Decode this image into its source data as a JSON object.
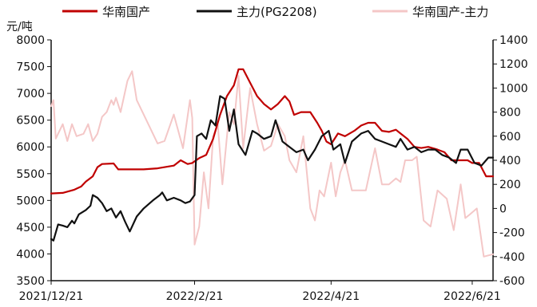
{
  "chart_data": {
    "type": "line",
    "y_unit_label": "元/吨",
    "x_tick_labels": [
      "2021/12/21",
      "2022/2/21",
      "2022/4/21",
      "2022/6/21"
    ],
    "x_range": [
      "2021-12-21",
      "2022-06-30"
    ],
    "y_left": {
      "min": 3500,
      "max": 8000,
      "ticks": [
        3500,
        4000,
        4500,
        5000,
        5500,
        6000,
        6500,
        7000,
        7500,
        8000
      ]
    },
    "y_right": {
      "min": -600,
      "max": 1400,
      "ticks": [
        -600,
        -400,
        -200,
        0,
        200,
        400,
        600,
        800,
        1000,
        1200,
        1400
      ]
    },
    "grid": false,
    "legend_position": "top",
    "series": [
      {
        "name": "华南国产",
        "axis": "left",
        "color": "#c00000",
        "points": [
          [
            "2021-12-21",
            5130
          ],
          [
            "2021-12-26",
            5140
          ],
          [
            "2021-12-31",
            5200
          ],
          [
            "2022-01-03",
            5260
          ],
          [
            "2022-01-05",
            5350
          ],
          [
            "2022-01-08",
            5450
          ],
          [
            "2022-01-10",
            5620
          ],
          [
            "2022-01-12",
            5680
          ],
          [
            "2022-01-17",
            5690
          ],
          [
            "2022-01-19",
            5580
          ],
          [
            "2022-01-23",
            5580
          ],
          [
            "2022-01-30",
            5580
          ],
          [
            "2022-02-05",
            5600
          ],
          [
            "2022-02-12",
            5650
          ],
          [
            "2022-02-15",
            5750
          ],
          [
            "2022-02-18",
            5680
          ],
          [
            "2022-02-20",
            5700
          ],
          [
            "2022-02-23",
            5790
          ],
          [
            "2022-02-26",
            5850
          ],
          [
            "2022-03-01",
            6150
          ],
          [
            "2022-03-04",
            6600
          ],
          [
            "2022-03-07",
            6950
          ],
          [
            "2022-03-10",
            7150
          ],
          [
            "2022-03-12",
            7450
          ],
          [
            "2022-03-14",
            7450
          ],
          [
            "2022-03-17",
            7200
          ],
          [
            "2022-03-20",
            6950
          ],
          [
            "2022-03-23",
            6800
          ],
          [
            "2022-03-26",
            6700
          ],
          [
            "2022-03-29",
            6800
          ],
          [
            "2022-04-01",
            6950
          ],
          [
            "2022-04-03",
            6850
          ],
          [
            "2022-04-05",
            6600
          ],
          [
            "2022-04-08",
            6650
          ],
          [
            "2022-04-12",
            6650
          ],
          [
            "2022-04-15",
            6450
          ],
          [
            "2022-04-17",
            6300
          ],
          [
            "2022-04-19",
            6100
          ],
          [
            "2022-04-21",
            6050
          ],
          [
            "2022-04-24",
            6250
          ],
          [
            "2022-04-27",
            6200
          ],
          [
            "2022-05-01",
            6300
          ],
          [
            "2022-05-04",
            6400
          ],
          [
            "2022-05-07",
            6450
          ],
          [
            "2022-05-10",
            6450
          ],
          [
            "2022-05-13",
            6300
          ],
          [
            "2022-05-16",
            6280
          ],
          [
            "2022-05-19",
            6320
          ],
          [
            "2022-05-21",
            6250
          ],
          [
            "2022-05-24",
            6150
          ],
          [
            "2022-05-27",
            6000
          ],
          [
            "2022-05-30",
            5980
          ],
          [
            "2022-06-02",
            6000
          ],
          [
            "2022-06-06",
            5950
          ],
          [
            "2022-06-09",
            5900
          ],
          [
            "2022-06-12",
            5750
          ],
          [
            "2022-06-16",
            5750
          ],
          [
            "2022-06-19",
            5750
          ],
          [
            "2022-06-21",
            5700
          ],
          [
            "2022-06-24",
            5700
          ],
          [
            "2022-06-27",
            5450
          ],
          [
            "2022-06-30",
            5450
          ]
        ]
      },
      {
        "name": "主力(PG2208)",
        "axis": "left",
        "color": "#111111",
        "points": [
          [
            "2021-12-21",
            4280
          ],
          [
            "2021-12-22",
            4250
          ],
          [
            "2021-12-24",
            4550
          ],
          [
            "2021-12-26",
            4530
          ],
          [
            "2021-12-28",
            4500
          ],
          [
            "2021-12-30",
            4620
          ],
          [
            "2021-12-31",
            4570
          ],
          [
            "2022-01-02",
            4740
          ],
          [
            "2022-01-05",
            4820
          ],
          [
            "2022-01-07",
            4900
          ],
          [
            "2022-01-08",
            5100
          ],
          [
            "2022-01-10",
            5050
          ],
          [
            "2022-01-12",
            4950
          ],
          [
            "2022-01-14",
            4800
          ],
          [
            "2022-01-16",
            4850
          ],
          [
            "2022-01-18",
            4680
          ],
          [
            "2022-01-20",
            4800
          ],
          [
            "2022-01-22",
            4600
          ],
          [
            "2022-01-24",
            4420
          ],
          [
            "2022-01-27",
            4700
          ],
          [
            "2022-01-30",
            4850
          ],
          [
            "2022-02-03",
            5000
          ],
          [
            "2022-02-06",
            5100
          ],
          [
            "2022-02-07",
            5150
          ],
          [
            "2022-02-09",
            5000
          ],
          [
            "2022-02-12",
            5050
          ],
          [
            "2022-02-15",
            5000
          ],
          [
            "2022-02-17",
            4950
          ],
          [
            "2022-02-19",
            4980
          ],
          [
            "2022-02-21",
            5100
          ],
          [
            "2022-02-22",
            6200
          ],
          [
            "2022-02-24",
            6250
          ],
          [
            "2022-02-26",
            6150
          ],
          [
            "2022-02-28",
            6500
          ],
          [
            "2022-03-02",
            6400
          ],
          [
            "2022-03-04",
            6950
          ],
          [
            "2022-03-06",
            6900
          ],
          [
            "2022-03-08",
            6300
          ],
          [
            "2022-03-10",
            6700
          ],
          [
            "2022-03-12",
            6050
          ],
          [
            "2022-03-15",
            5850
          ],
          [
            "2022-03-18",
            6300
          ],
          [
            "2022-03-20",
            6250
          ],
          [
            "2022-03-23",
            6150
          ],
          [
            "2022-03-26",
            6200
          ],
          [
            "2022-03-28",
            6500
          ],
          [
            "2022-03-31",
            6100
          ],
          [
            "2022-04-03",
            6000
          ],
          [
            "2022-04-06",
            5900
          ],
          [
            "2022-04-09",
            5950
          ],
          [
            "2022-04-11",
            5750
          ],
          [
            "2022-04-14",
            5950
          ],
          [
            "2022-04-17",
            6200
          ],
          [
            "2022-04-20",
            6300
          ],
          [
            "2022-04-22",
            5950
          ],
          [
            "2022-04-25",
            6050
          ],
          [
            "2022-04-27",
            5700
          ],
          [
            "2022-04-30",
            6100
          ],
          [
            "2022-05-04",
            6250
          ],
          [
            "2022-05-07",
            6300
          ],
          [
            "2022-05-10",
            6150
          ],
          [
            "2022-05-13",
            6100
          ],
          [
            "2022-05-16",
            6050
          ],
          [
            "2022-05-19",
            6000
          ],
          [
            "2022-05-21",
            6150
          ],
          [
            "2022-05-24",
            5950
          ],
          [
            "2022-05-27",
            6000
          ],
          [
            "2022-05-30",
            5900
          ],
          [
            "2022-06-02",
            5950
          ],
          [
            "2022-06-05",
            5950
          ],
          [
            "2022-06-08",
            5850
          ],
          [
            "2022-06-11",
            5800
          ],
          [
            "2022-06-14",
            5700
          ],
          [
            "2022-06-16",
            5950
          ],
          [
            "2022-06-19",
            5950
          ],
          [
            "2022-06-22",
            5700
          ],
          [
            "2022-06-25",
            5650
          ],
          [
            "2022-06-28",
            5800
          ],
          [
            "2022-06-30",
            5800
          ]
        ]
      },
      {
        "name": "华南国产-主力",
        "axis": "right",
        "color": "#f4c7c7",
        "points": [
          [
            "2021-12-21",
            850
          ],
          [
            "2021-12-22",
            900
          ],
          [
            "2021-12-23",
            580
          ],
          [
            "2021-12-26",
            700
          ],
          [
            "2021-12-28",
            560
          ],
          [
            "2021-12-30",
            700
          ],
          [
            "2022-01-01",
            600
          ],
          [
            "2022-01-04",
            620
          ],
          [
            "2022-01-06",
            700
          ],
          [
            "2022-01-08",
            560
          ],
          [
            "2022-01-10",
            620
          ],
          [
            "2022-01-12",
            760
          ],
          [
            "2022-01-14",
            800
          ],
          [
            "2022-01-16",
            900
          ],
          [
            "2022-01-17",
            860
          ],
          [
            "2022-01-18",
            920
          ],
          [
            "2022-01-20",
            800
          ],
          [
            "2022-01-23",
            1060
          ],
          [
            "2022-01-25",
            1140
          ],
          [
            "2022-01-27",
            900
          ],
          [
            "2022-02-01",
            700
          ],
          [
            "2022-02-05",
            540
          ],
          [
            "2022-02-08",
            560
          ],
          [
            "2022-02-12",
            780
          ],
          [
            "2022-02-16",
            500
          ],
          [
            "2022-02-19",
            900
          ],
          [
            "2022-02-20",
            750
          ],
          [
            "2022-02-21",
            -300
          ],
          [
            "2022-02-23",
            -150
          ],
          [
            "2022-02-25",
            300
          ],
          [
            "2022-02-27",
            0
          ],
          [
            "2022-03-01",
            600
          ],
          [
            "2022-03-03",
            700
          ],
          [
            "2022-03-05",
            200
          ],
          [
            "2022-03-08",
            800
          ],
          [
            "2022-03-10",
            700
          ],
          [
            "2022-03-12",
            1100
          ],
          [
            "2022-03-14",
            500
          ],
          [
            "2022-03-17",
            1000
          ],
          [
            "2022-03-20",
            700
          ],
          [
            "2022-03-23",
            480
          ],
          [
            "2022-03-26",
            520
          ],
          [
            "2022-03-29",
            700
          ],
          [
            "2022-04-01",
            600
          ],
          [
            "2022-04-03",
            400
          ],
          [
            "2022-04-06",
            300
          ],
          [
            "2022-04-09",
            600
          ],
          [
            "2022-04-11",
            200
          ],
          [
            "2022-04-12",
            0
          ],
          [
            "2022-04-14",
            -100
          ],
          [
            "2022-04-16",
            150
          ],
          [
            "2022-04-18",
            100
          ],
          [
            "2022-04-21",
            380
          ],
          [
            "2022-04-23",
            100
          ],
          [
            "2022-04-25",
            300
          ],
          [
            "2022-04-27",
            400
          ],
          [
            "2022-04-30",
            150
          ],
          [
            "2022-05-03",
            150
          ],
          [
            "2022-05-06",
            150
          ],
          [
            "2022-05-10",
            500
          ],
          [
            "2022-05-13",
            200
          ],
          [
            "2022-05-16",
            200
          ],
          [
            "2022-05-19",
            250
          ],
          [
            "2022-05-21",
            220
          ],
          [
            "2022-05-23",
            400
          ],
          [
            "2022-05-26",
            400
          ],
          [
            "2022-05-28",
            430
          ],
          [
            "2022-05-31",
            -100
          ],
          [
            "2022-06-03",
            -150
          ],
          [
            "2022-06-06",
            150
          ],
          [
            "2022-06-10",
            80
          ],
          [
            "2022-06-13",
            -180
          ],
          [
            "2022-06-16",
            200
          ],
          [
            "2022-06-18",
            -80
          ],
          [
            "2022-06-20",
            -50
          ],
          [
            "2022-06-23",
            0
          ],
          [
            "2022-06-26",
            -400
          ],
          [
            "2022-06-30",
            -380
          ]
        ]
      }
    ]
  }
}
